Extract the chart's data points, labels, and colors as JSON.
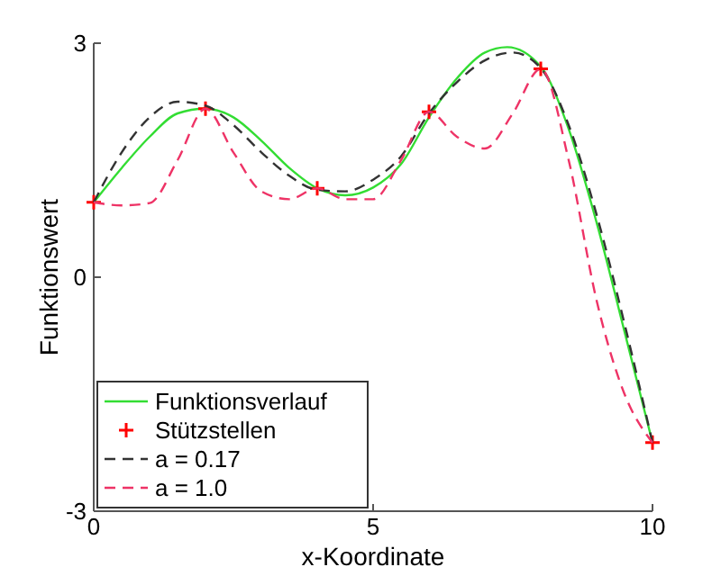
{
  "chart_data": {
    "type": "line",
    "xlabel": "x-Koordinate",
    "ylabel": "Funktionswert",
    "xlim": [
      0,
      10
    ],
    "ylim": [
      -3,
      3
    ],
    "xticks": [
      0,
      5,
      10
    ],
    "yticks": [
      -3,
      0,
      3
    ],
    "grid": false,
    "legend": "bottom left",
    "series": [
      {
        "name": "Funktionsverlauf",
        "color": "#33dd33",
        "line_style": "solid",
        "marker": "none",
        "x": [
          0,
          0.5,
          1,
          1.5,
          2,
          2.5,
          3,
          3.5,
          4,
          4.5,
          5,
          5.5,
          6,
          6.5,
          7,
          7.4,
          8,
          8.5,
          9,
          9.5,
          10
        ],
        "values": [
          0.96,
          1.4,
          1.8,
          2.1,
          2.16,
          2.05,
          1.75,
          1.4,
          1.14,
          1.05,
          1.15,
          1.45,
          2.05,
          2.55,
          2.88,
          2.95,
          2.7,
          1.9,
          0.7,
          -0.7,
          -2.12
        ]
      },
      {
        "name": "Stützstellen",
        "type": "scatter",
        "color": "#ff0000",
        "marker": "cross",
        "x": [
          0,
          2,
          4,
          6,
          8,
          10
        ],
        "values": [
          0.96,
          2.16,
          1.14,
          2.12,
          2.67,
          -2.12
        ]
      },
      {
        "name": "a = 0.17",
        "color": "#333333",
        "line_style": "dashed",
        "marker": "none",
        "x": [
          0,
          0.5,
          1,
          1.5,
          2,
          2.5,
          3,
          3.5,
          4,
          4.5,
          5,
          5.5,
          6,
          6.5,
          7,
          7.5,
          8,
          8.5,
          9,
          9.5,
          10
        ],
        "values": [
          0.96,
          1.6,
          2.05,
          2.25,
          2.2,
          1.95,
          1.6,
          1.3,
          1.12,
          1.1,
          1.25,
          1.55,
          2.1,
          2.5,
          2.78,
          2.88,
          2.68,
          1.95,
          0.8,
          -0.6,
          -2.12
        ]
      },
      {
        "name": "a = 1.0",
        "color": "#ee3366",
        "line_style": "dashed",
        "marker": "none",
        "x": [
          0,
          0.5,
          1,
          1.5,
          2,
          2.5,
          3,
          3.5,
          4,
          4.5,
          5,
          5.5,
          6,
          6.5,
          7,
          7.5,
          8,
          8.5,
          9,
          9.5,
          10
        ],
        "values": [
          0.96,
          0.92,
          0.95,
          1.5,
          2.16,
          1.6,
          1.1,
          1.0,
          1.14,
          1.0,
          1.0,
          1.5,
          2.12,
          1.8,
          1.65,
          2.1,
          2.67,
          1.5,
          -0.3,
          -1.5,
          -2.12
        ]
      }
    ]
  }
}
